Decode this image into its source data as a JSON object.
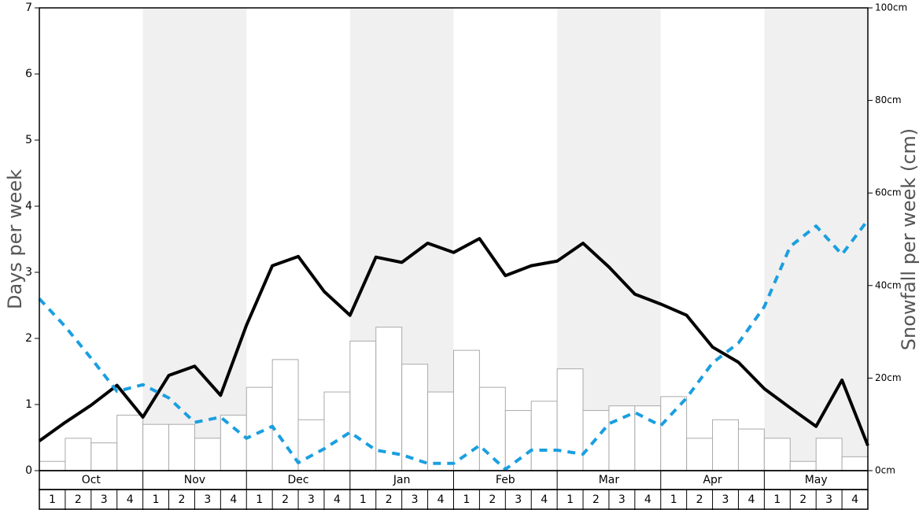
{
  "chart_data": {
    "type": "bar-line",
    "y_label": "Days per week",
    "y2_label": "Snowfall per week (cm)",
    "months": [
      "Oct",
      "Nov",
      "Dec",
      "Jan",
      "Feb",
      "Mar",
      "Apr",
      "May"
    ],
    "categories": [
      "1",
      "2",
      "3",
      "4",
      "1",
      "2",
      "3",
      "4",
      "1",
      "2",
      "3",
      "4",
      "1",
      "2",
      "3",
      "4",
      "1",
      "2",
      "3",
      "4",
      "1",
      "2",
      "3",
      "4",
      "1",
      "2",
      "3",
      "4",
      "1",
      "2",
      "3",
      "4"
    ],
    "ylim": [
      0,
      7
    ],
    "yticks": [
      0,
      1,
      2,
      3,
      4,
      5,
      6,
      7
    ],
    "y2lim": [
      0,
      100
    ],
    "y2ticks": [
      {
        "value": 0,
        "label": "0cm"
      },
      {
        "value": 20,
        "label": "20cm"
      },
      {
        "value": 40,
        "label": "40cm"
      },
      {
        "value": 60,
        "label": "60cm"
      },
      {
        "value": 80,
        "label": "80cm"
      },
      {
        "value": 100,
        "label": "100cm"
      }
    ],
    "bar_series": {
      "axis": "y2",
      "color": "#ffffff",
      "edge_color": "#aaaaaa",
      "values": [
        2,
        7,
        6,
        12,
        10,
        10,
        7,
        12,
        18,
        24,
        11,
        17,
        28,
        31,
        23,
        17,
        26,
        18,
        13,
        15,
        22,
        13,
        14,
        14,
        16,
        7,
        11,
        9,
        7,
        2,
        7,
        3
      ]
    },
    "line_series": [
      {
        "color": "#000000",
        "dashed": false,
        "values": [
          0.45,
          0.73,
          0.99,
          1.29,
          0.81,
          1.44,
          1.58,
          1.14,
          2.2,
          3.1,
          3.24,
          2.71,
          2.35,
          3.23,
          3.15,
          3.44,
          3.3,
          3.51,
          2.95,
          3.1,
          3.17,
          3.44,
          3.08,
          2.67,
          2.52,
          2.35,
          1.87,
          1.64,
          1.24,
          0.95,
          0.67,
          1.37,
          0.38
        ]
      },
      {
        "color": "#1a9fe0",
        "dashed": true,
        "values": [
          2.6,
          2.18,
          1.7,
          1.2,
          1.3,
          1.1,
          0.73,
          0.81,
          0.49,
          0.67,
          0.12,
          0.33,
          0.58,
          0.31,
          0.24,
          0.11,
          0.11,
          0.38,
          0.02,
          0.31,
          0.31,
          0.25,
          0.71,
          0.88,
          0.68,
          1.1,
          1.63,
          1.93,
          2.48,
          3.39,
          3.7,
          3.27,
          3.79
        ]
      }
    ],
    "shade_color": "#f0f0f0"
  }
}
